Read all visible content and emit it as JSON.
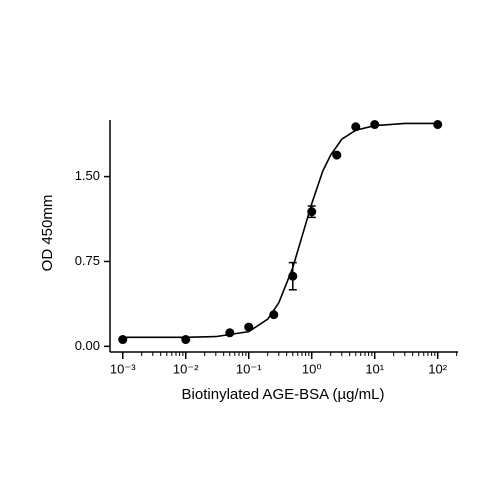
{
  "chart_data": {
    "type": "scatter",
    "x_label": "Biotinylated AGE-BSA (µg/mL)",
    "y_label": "OD 450mm",
    "log_x": true,
    "color": "#000000",
    "x": [
      0.001,
      0.01,
      0.05,
      0.1,
      0.25,
      0.5,
      1,
      2.5,
      5,
      10,
      100
    ],
    "values": [
      0.06,
      0.06,
      0.12,
      0.17,
      0.28,
      0.62,
      1.19,
      1.69,
      1.94,
      1.96,
      1.96
    ],
    "errors": [
      null,
      null,
      null,
      null,
      null,
      0.12,
      0.05,
      null,
      null,
      null,
      null
    ],
    "fit": {
      "x": [
        0.001,
        0.01,
        0.03,
        0.1,
        0.2,
        0.3,
        0.5,
        0.7,
        1,
        1.5,
        2,
        3,
        5,
        10,
        30,
        100
      ],
      "values": [
        0.08,
        0.08,
        0.086,
        0.13,
        0.24,
        0.385,
        0.695,
        0.97,
        1.26,
        1.55,
        1.69,
        1.83,
        1.91,
        1.95,
        1.97,
        1.97
      ]
    },
    "xlim": [
      0.0007,
      210
    ],
    "ylim": [
      -0.05,
      2.0
    ],
    "xticks": [
      {
        "value": 0.001,
        "label": "10⁻³"
      },
      {
        "value": 0.01,
        "label": "10⁻²"
      },
      {
        "value": 0.1,
        "label": "10⁻¹"
      },
      {
        "value": 1,
        "label": "10⁰"
      },
      {
        "value": 10,
        "label": "10¹"
      },
      {
        "value": 100,
        "label": "10²"
      }
    ],
    "xminorticks": [
      0.002,
      0.003,
      0.004,
      0.005,
      0.006,
      0.007,
      0.008,
      0.009,
      0.02,
      0.03,
      0.04,
      0.05,
      0.06,
      0.07,
      0.08,
      0.09,
      0.2,
      0.3,
      0.4,
      0.5,
      0.6,
      0.7,
      0.8,
      0.9,
      2,
      3,
      4,
      5,
      6,
      7,
      8,
      9,
      20,
      30,
      40,
      50,
      60,
      70,
      80,
      90,
      200
    ],
    "yticks": [
      {
        "value": 0,
        "label": "0.00"
      },
      {
        "value": 0.75,
        "label": "0.75"
      },
      {
        "value": 1.5,
        "label": "1.50"
      }
    ]
  }
}
